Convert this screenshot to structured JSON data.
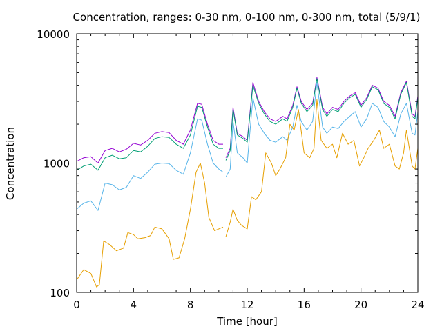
{
  "chart_data": {
    "type": "line",
    "title": "Concentration, ranges: 0-30 nm, 0-100 nm, 0-300 nm, total (5/9/1)",
    "xlabel": "Time [hour]",
    "ylabel": "Concentration",
    "xlim": [
      0,
      24
    ],
    "ylim": [
      100,
      10000
    ],
    "yscale": "log",
    "grid": false,
    "legend": "none",
    "x_ticks": [
      0,
      4,
      8,
      12,
      16,
      20,
      24
    ],
    "y_ticks": [
      100,
      1000,
      10000
    ],
    "x_tick_labels": [
      "0",
      "4",
      "8",
      "12",
      "16",
      "20",
      "24"
    ],
    "y_tick_labels": [
      "100",
      "1000",
      "10000"
    ],
    "series": [
      {
        "color": "#9400d3",
        "points": [
          [
            0,
            1030
          ],
          [
            0.5,
            1100
          ],
          [
            1.0,
            1120
          ],
          [
            1.5,
            1000
          ],
          [
            2.0,
            1250
          ],
          [
            2.5,
            1300
          ],
          [
            3.0,
            1220
          ],
          [
            3.5,
            1280
          ],
          [
            4.0,
            1420
          ],
          [
            4.5,
            1380
          ],
          [
            5.0,
            1500
          ],
          [
            5.5,
            1700
          ],
          [
            6.0,
            1750
          ],
          [
            6.5,
            1720
          ],
          [
            7.0,
            1500
          ],
          [
            7.5,
            1400
          ],
          [
            8.0,
            1800
          ],
          [
            8.5,
            2900
          ],
          [
            8.8,
            2850
          ],
          [
            9.2,
            2000
          ],
          [
            9.6,
            1500
          ],
          [
            10.0,
            1400
          ],
          [
            10.3,
            1400
          ],
          [
            null,
            null
          ],
          [
            10.5,
            1100
          ],
          [
            10.8,
            1300
          ],
          [
            11.0,
            2700
          ],
          [
            11.3,
            1700
          ],
          [
            11.7,
            1600
          ],
          [
            12.0,
            1500
          ],
          [
            12.4,
            4200
          ],
          [
            12.8,
            3000
          ],
          [
            13.2,
            2500
          ],
          [
            13.6,
            2200
          ],
          [
            14.0,
            2100
          ],
          [
            14.5,
            2300
          ],
          [
            14.8,
            2200
          ],
          [
            15.2,
            2800
          ],
          [
            15.5,
            3900
          ],
          [
            15.8,
            3000
          ],
          [
            16.2,
            2600
          ],
          [
            16.6,
            2900
          ],
          [
            16.9,
            4600
          ],
          [
            17.3,
            2700
          ],
          [
            17.6,
            2400
          ],
          [
            18.0,
            2700
          ],
          [
            18.4,
            2600
          ],
          [
            18.8,
            3000
          ],
          [
            19.2,
            3300
          ],
          [
            19.6,
            3500
          ],
          [
            20.0,
            2800
          ],
          [
            20.4,
            3200
          ],
          [
            20.8,
            4000
          ],
          [
            21.2,
            3800
          ],
          [
            21.6,
            3000
          ],
          [
            22.0,
            2800
          ],
          [
            22.4,
            2300
          ],
          [
            22.8,
            3500
          ],
          [
            23.2,
            4300
          ],
          [
            23.6,
            2400
          ],
          [
            23.8,
            2300
          ],
          [
            24.0,
            3300
          ]
        ]
      },
      {
        "color": "#009e73",
        "points": [
          [
            0,
            880
          ],
          [
            0.5,
            950
          ],
          [
            1.0,
            980
          ],
          [
            1.5,
            880
          ],
          [
            2.0,
            1100
          ],
          [
            2.5,
            1150
          ],
          [
            3.0,
            1080
          ],
          [
            3.5,
            1100
          ],
          [
            4.0,
            1250
          ],
          [
            4.5,
            1220
          ],
          [
            5.0,
            1350
          ],
          [
            5.5,
            1550
          ],
          [
            6.0,
            1600
          ],
          [
            6.5,
            1580
          ],
          [
            7.0,
            1400
          ],
          [
            7.5,
            1300
          ],
          [
            8.0,
            1650
          ],
          [
            8.5,
            2750
          ],
          [
            8.8,
            2700
          ],
          [
            9.2,
            1900
          ],
          [
            9.6,
            1400
          ],
          [
            10.0,
            1300
          ],
          [
            10.3,
            1300
          ],
          [
            null,
            null
          ],
          [
            10.5,
            1050
          ],
          [
            10.8,
            1250
          ],
          [
            11.0,
            2600
          ],
          [
            11.3,
            1650
          ],
          [
            11.7,
            1550
          ],
          [
            12.0,
            1450
          ],
          [
            12.4,
            4000
          ],
          [
            12.8,
            2900
          ],
          [
            13.2,
            2400
          ],
          [
            13.6,
            2100
          ],
          [
            14.0,
            2000
          ],
          [
            14.5,
            2200
          ],
          [
            14.8,
            2100
          ],
          [
            15.2,
            2700
          ],
          [
            15.5,
            3800
          ],
          [
            15.8,
            2900
          ],
          [
            16.2,
            2500
          ],
          [
            16.6,
            2800
          ],
          [
            16.9,
            4500
          ],
          [
            17.3,
            2600
          ],
          [
            17.6,
            2300
          ],
          [
            18.0,
            2600
          ],
          [
            18.4,
            2500
          ],
          [
            18.8,
            2900
          ],
          [
            19.2,
            3200
          ],
          [
            19.6,
            3400
          ],
          [
            20.0,
            2700
          ],
          [
            20.4,
            3100
          ],
          [
            20.8,
            3900
          ],
          [
            21.2,
            3700
          ],
          [
            21.6,
            2900
          ],
          [
            22.0,
            2700
          ],
          [
            22.4,
            2200
          ],
          [
            22.8,
            3400
          ],
          [
            23.2,
            4200
          ],
          [
            23.6,
            2300
          ],
          [
            23.8,
            2200
          ],
          [
            24.0,
            3200
          ]
        ]
      },
      {
        "color": "#56b4e9",
        "points": [
          [
            0,
            440
          ],
          [
            0.5,
            490
          ],
          [
            1.0,
            510
          ],
          [
            1.5,
            430
          ],
          [
            2.0,
            700
          ],
          [
            2.5,
            680
          ],
          [
            3.0,
            620
          ],
          [
            3.5,
            650
          ],
          [
            4.0,
            800
          ],
          [
            4.5,
            760
          ],
          [
            5.0,
            850
          ],
          [
            5.5,
            980
          ],
          [
            6.0,
            1000
          ],
          [
            6.5,
            990
          ],
          [
            7.0,
            880
          ],
          [
            7.5,
            820
          ],
          [
            8.0,
            1200
          ],
          [
            8.5,
            2200
          ],
          [
            8.8,
            2150
          ],
          [
            9.2,
            1400
          ],
          [
            9.6,
            1000
          ],
          [
            10.0,
            900
          ],
          [
            10.3,
            850
          ],
          [
            null,
            null
          ],
          [
            10.5,
            780
          ],
          [
            10.8,
            900
          ],
          [
            11.0,
            2100
          ],
          [
            11.3,
            1200
          ],
          [
            11.7,
            1100
          ],
          [
            12.0,
            1000
          ],
          [
            12.4,
            3200
          ],
          [
            12.8,
            2000
          ],
          [
            13.2,
            1700
          ],
          [
            13.6,
            1500
          ],
          [
            14.0,
            1450
          ],
          [
            14.5,
            1600
          ],
          [
            14.8,
            1500
          ],
          [
            15.2,
            1900
          ],
          [
            15.5,
            2800
          ],
          [
            15.8,
            2100
          ],
          [
            16.2,
            1800
          ],
          [
            16.6,
            2100
          ],
          [
            16.9,
            4200
          ],
          [
            17.3,
            1900
          ],
          [
            17.6,
            1700
          ],
          [
            18.0,
            1900
          ],
          [
            18.4,
            1850
          ],
          [
            18.8,
            2100
          ],
          [
            19.2,
            2300
          ],
          [
            19.6,
            2500
          ],
          [
            20.0,
            1900
          ],
          [
            20.4,
            2200
          ],
          [
            20.8,
            2900
          ],
          [
            21.2,
            2700
          ],
          [
            21.6,
            2100
          ],
          [
            22.0,
            1900
          ],
          [
            22.4,
            1600
          ],
          [
            22.8,
            2400
          ],
          [
            23.2,
            2900
          ],
          [
            23.6,
            1700
          ],
          [
            23.8,
            1650
          ],
          [
            24.0,
            2500
          ]
        ]
      },
      {
        "color": "#e69f00",
        "points": [
          [
            0,
            125
          ],
          [
            0.5,
            150
          ],
          [
            1.0,
            140
          ],
          [
            1.4,
            110
          ],
          [
            1.6,
            115
          ],
          [
            1.9,
            250
          ],
          [
            2.3,
            235
          ],
          [
            2.8,
            210
          ],
          [
            3.3,
            220
          ],
          [
            3.6,
            290
          ],
          [
            4.0,
            280
          ],
          [
            4.3,
            260
          ],
          [
            4.8,
            265
          ],
          [
            5.2,
            275
          ],
          [
            5.5,
            320
          ],
          [
            6.0,
            310
          ],
          [
            6.5,
            260
          ],
          [
            6.8,
            180
          ],
          [
            7.2,
            185
          ],
          [
            7.6,
            260
          ],
          [
            8.0,
            440
          ],
          [
            8.4,
            850
          ],
          [
            8.7,
            1000
          ],
          [
            9.0,
            700
          ],
          [
            9.3,
            380
          ],
          [
            9.7,
            300
          ],
          [
            10.0,
            310
          ],
          [
            10.3,
            320
          ],
          [
            null,
            null
          ],
          [
            10.5,
            270
          ],
          [
            10.8,
            350
          ],
          [
            11.0,
            440
          ],
          [
            11.3,
            360
          ],
          [
            11.6,
            330
          ],
          [
            12.0,
            310
          ],
          [
            12.3,
            550
          ],
          [
            12.6,
            520
          ],
          [
            13.0,
            600
          ],
          [
            13.3,
            1200
          ],
          [
            13.7,
            1000
          ],
          [
            14.0,
            800
          ],
          [
            14.3,
            900
          ],
          [
            14.7,
            1100
          ],
          [
            15.0,
            2000
          ],
          [
            15.3,
            1800
          ],
          [
            15.6,
            2600
          ],
          [
            16.0,
            1200
          ],
          [
            16.4,
            1100
          ],
          [
            16.7,
            1300
          ],
          [
            16.9,
            3100
          ],
          [
            17.2,
            1500
          ],
          [
            17.6,
            1300
          ],
          [
            18.0,
            1400
          ],
          [
            18.3,
            1100
          ],
          [
            18.7,
            1700
          ],
          [
            19.1,
            1400
          ],
          [
            19.5,
            1500
          ],
          [
            19.9,
            950
          ],
          [
            20.2,
            1100
          ],
          [
            20.5,
            1300
          ],
          [
            20.9,
            1500
          ],
          [
            21.3,
            1800
          ],
          [
            21.6,
            1300
          ],
          [
            22.0,
            1400
          ],
          [
            22.4,
            950
          ],
          [
            22.7,
            900
          ],
          [
            23.0,
            1200
          ],
          [
            23.2,
            1800
          ],
          [
            23.6,
            950
          ],
          [
            23.8,
            900
          ],
          [
            24.0,
            1300
          ]
        ]
      }
    ]
  }
}
